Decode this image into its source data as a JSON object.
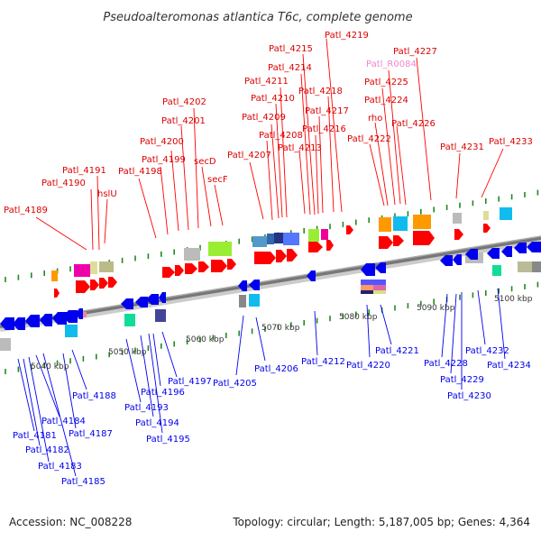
{
  "title": "Pseudoalteromonas atlantica T6c, complete genome",
  "footer": {
    "accession": "Accession: NC_008228",
    "summary": "Topology: circular; Length: 5,187,005 bp; Genes: 4,364"
  },
  "colors": {
    "forward_gene": "#ff0000",
    "reverse_gene": "#0000ee",
    "rna_label": "#ee88cc",
    "ruler": "#888888",
    "tick": "#228822"
  },
  "kbp_labels": [
    "5040 kbp",
    "5050 kbp",
    "5060 kbp",
    "5070 kbp",
    "5080 kbp",
    "5090 kbp",
    "5100 kbp"
  ],
  "top_labels": [
    {
      "text": "Patl_4189",
      "color": "red"
    },
    {
      "text": "Patl_4190",
      "color": "red"
    },
    {
      "text": "Patl_4191",
      "color": "red"
    },
    {
      "text": "hslU",
      "color": "red"
    },
    {
      "text": "Patl_4198",
      "color": "red"
    },
    {
      "text": "Patl_4199",
      "color": "red"
    },
    {
      "text": "Patl_4200",
      "color": "red"
    },
    {
      "text": "Patl_4201",
      "color": "red"
    },
    {
      "text": "Patl_4202",
      "color": "red"
    },
    {
      "text": "secD",
      "color": "red"
    },
    {
      "text": "secF",
      "color": "red"
    },
    {
      "text": "Patl_4207",
      "color": "red"
    },
    {
      "text": "Patl_4208",
      "color": "red"
    },
    {
      "text": "Patl_4209",
      "color": "red"
    },
    {
      "text": "Patl_4210",
      "color": "red"
    },
    {
      "text": "Patl_4211",
      "color": "red"
    },
    {
      "text": "Patl_4213",
      "color": "red"
    },
    {
      "text": "Patl_4214",
      "color": "red"
    },
    {
      "text": "Patl_4215",
      "color": "red"
    },
    {
      "text": "Patl_4216",
      "color": "red"
    },
    {
      "text": "Patl_4217",
      "color": "red"
    },
    {
      "text": "Patl_4218",
      "color": "red"
    },
    {
      "text": "Patl_4219",
      "color": "red"
    },
    {
      "text": "Patl_R0084",
      "color": "pink"
    },
    {
      "text": "Patl_4225",
      "color": "red"
    },
    {
      "text": "Patl_4224",
      "color": "red"
    },
    {
      "text": "rho",
      "color": "red"
    },
    {
      "text": "Patl_4222",
      "color": "red"
    },
    {
      "text": "Patl_4226",
      "color": "red"
    },
    {
      "text": "Patl_4227",
      "color": "red"
    },
    {
      "text": "Patl_4231",
      "color": "red"
    },
    {
      "text": "Patl_4233",
      "color": "red"
    }
  ],
  "bottom_labels": [
    "Patl_4181",
    "Patl_4182",
    "Patl_4183",
    "Patl_4184",
    "Patl_4185",
    "Patl_4187",
    "Patl_4188",
    "Patl_4193",
    "Patl_4194",
    "Patl_4195",
    "Patl_4196",
    "Patl_4197",
    "Patl_4205",
    "Patl_4206",
    "Patl_4212",
    "Patl_4220",
    "Patl_4221",
    "Patl_4228",
    "Patl_4229",
    "Patl_4230",
    "Patl_4232",
    "Patl_4234"
  ]
}
